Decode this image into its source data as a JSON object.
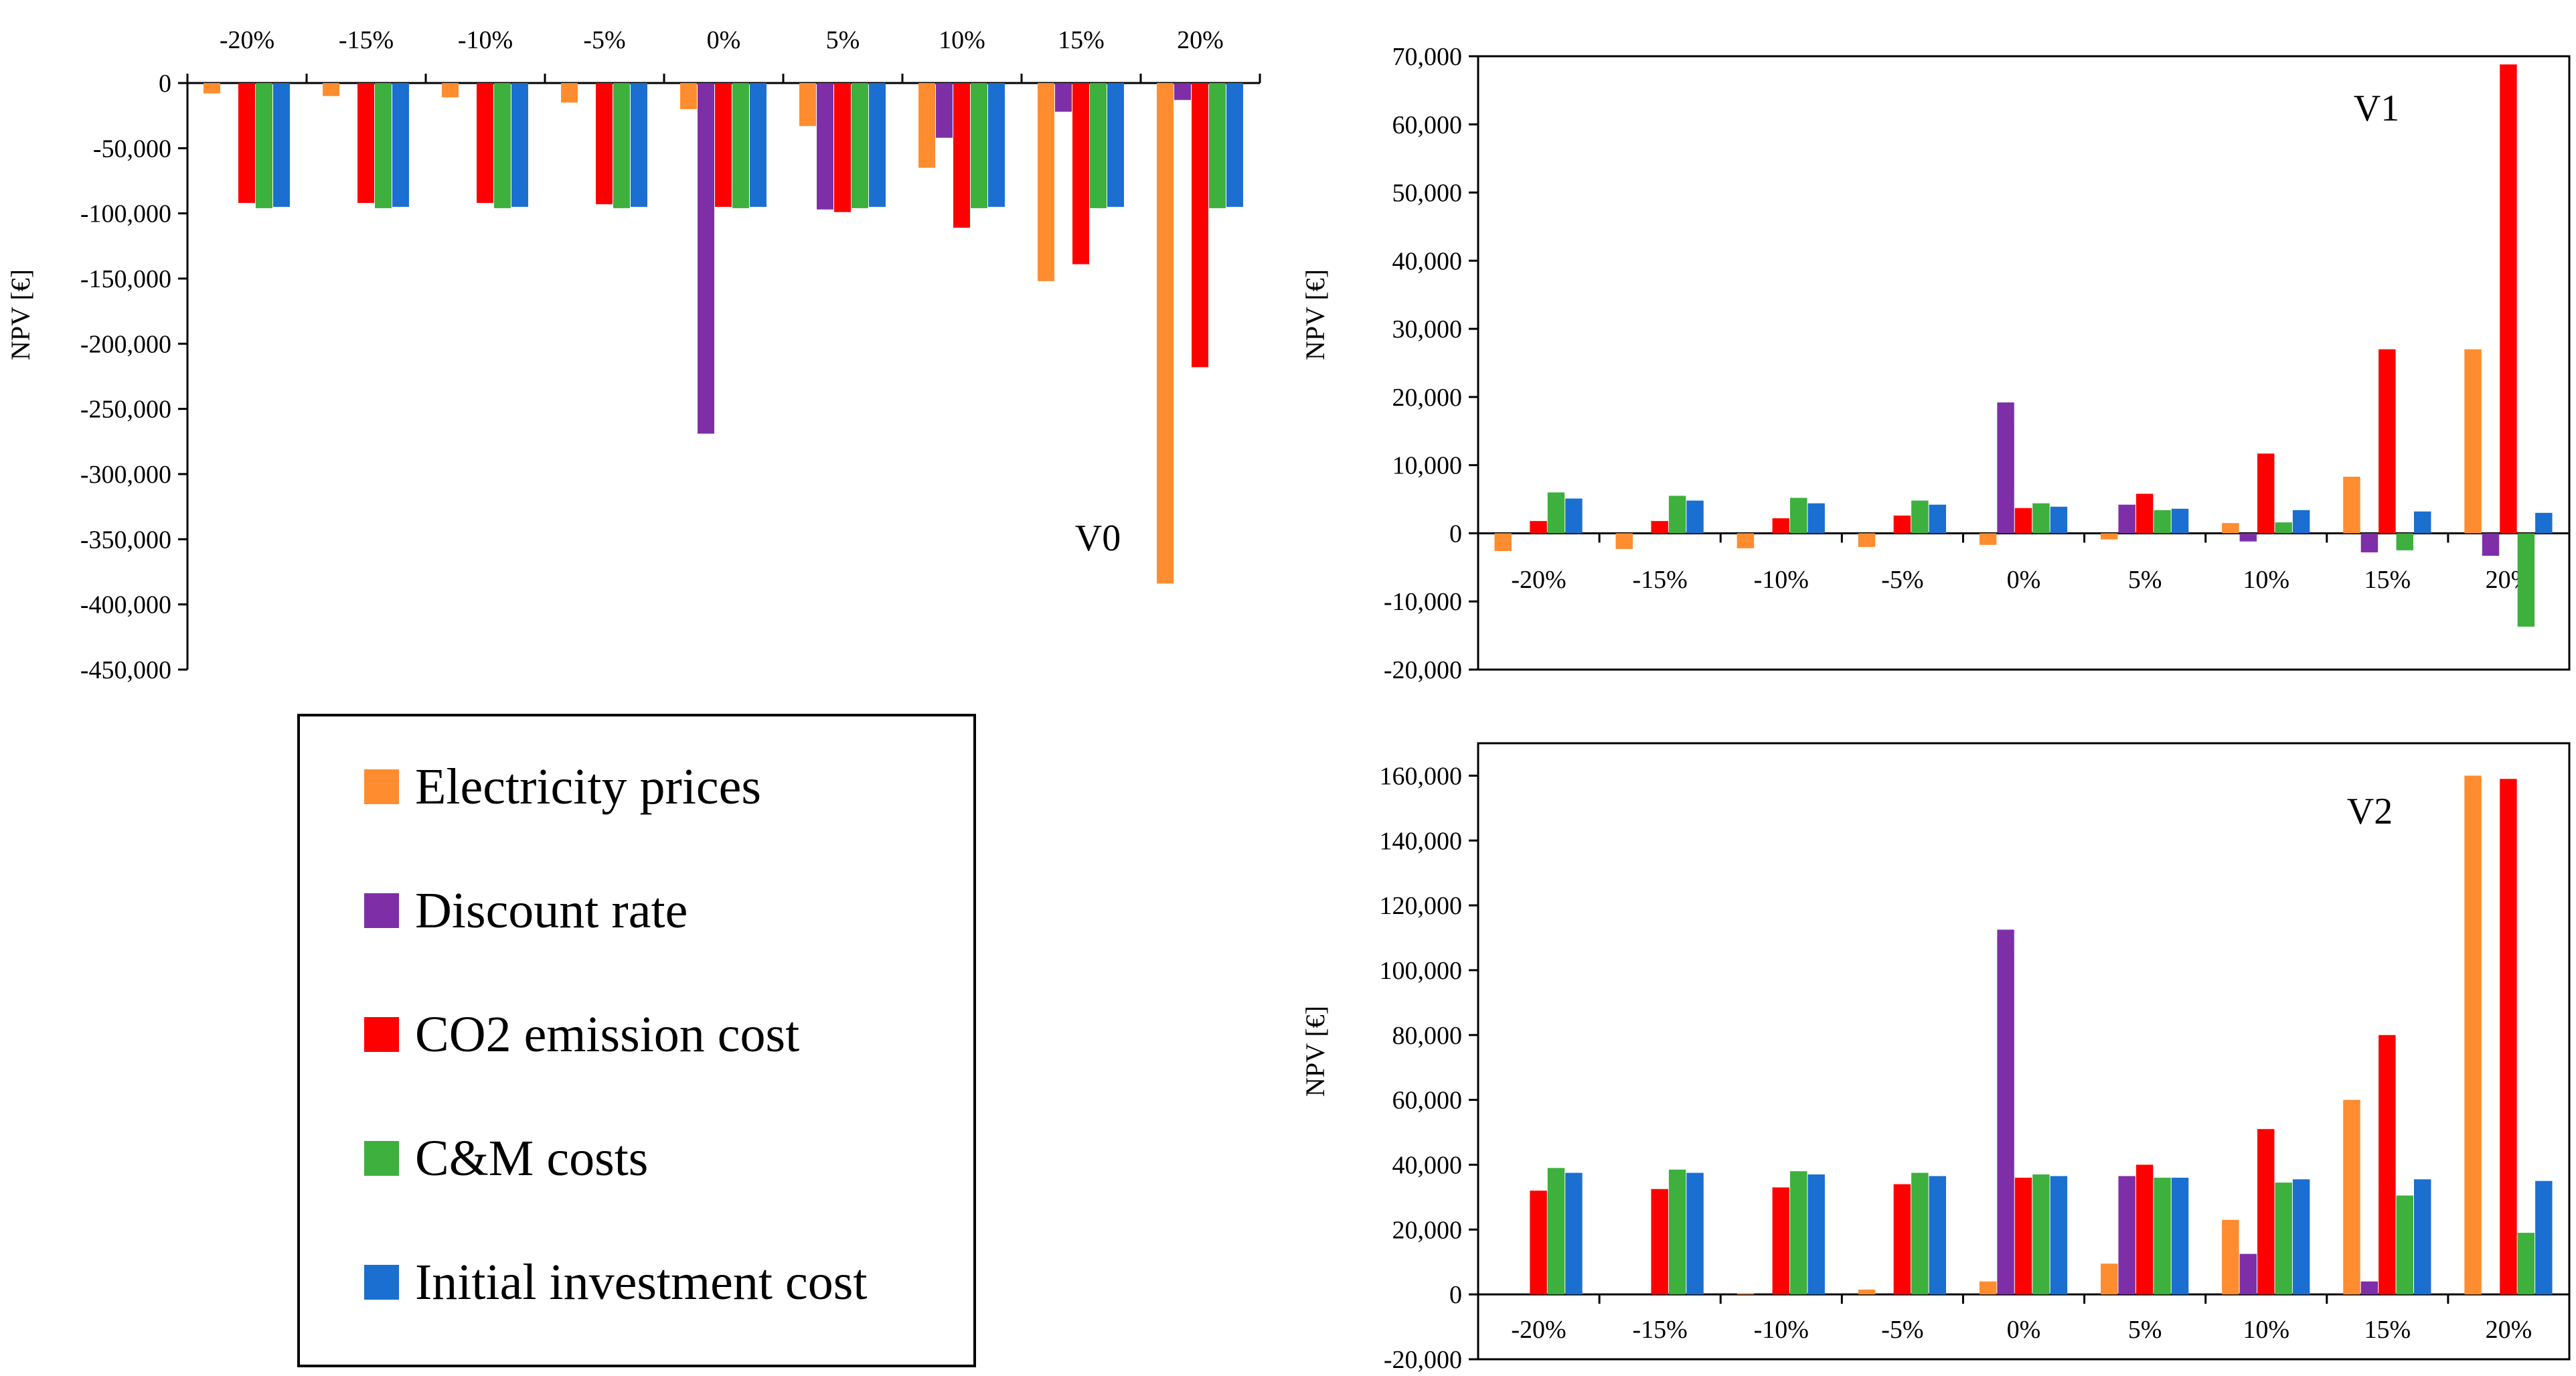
{
  "colors": {
    "Electricity prices": "#FF8C2E",
    "Discount rate": "#7E2FA8",
    "CO2 emission cost": "#FF0000",
    "C&M costs": "#3DB03D",
    "Initial investment cost": "#1A6FD0"
  },
  "legend": {
    "items": [
      "Electricity prices",
      "Discount rate",
      "CO2 emission cost",
      "C&M costs",
      "Initial investment cost"
    ],
    "placement": "bottom-left"
  },
  "chart_data": [
    {
      "type": "bar",
      "id": "v0",
      "label": "V0",
      "ylabel": "NPV [€]",
      "ylim": [
        -450000,
        0
      ],
      "yticks": [
        0,
        -50000,
        -100000,
        -150000,
        -200000,
        -250000,
        -300000,
        -350000,
        -400000,
        -450000
      ],
      "ytick_labels": [
        "0",
        "-50,000",
        "-100,000",
        "-150,000",
        "-200,000",
        "-250,000",
        "-300,000",
        "-350,000",
        "-400,000",
        "-450,000"
      ],
      "categories": [
        "-20%",
        "-15%",
        "-10%",
        "-5%",
        "0%",
        "5%",
        "10%",
        "15%",
        "20%"
      ],
      "series": [
        {
          "name": "Electricity prices",
          "values": [
            -8000,
            -10000,
            -11000,
            -15000,
            -20000,
            -33000,
            -65000,
            -152000,
            -384000
          ]
        },
        {
          "name": "Discount rate",
          "values": [
            0,
            0,
            0,
            0,
            -269000,
            -97000,
            -42000,
            -22000,
            -13000
          ]
        },
        {
          "name": "CO2 emission cost",
          "values": [
            -92000,
            -92000,
            -92000,
            -93000,
            -95000,
            -99000,
            -111000,
            -139000,
            -218000
          ]
        },
        {
          "name": "C&M costs",
          "values": [
            -96000,
            -96000,
            -96000,
            -96000,
            -96000,
            -96000,
            -96000,
            -96000,
            -96000
          ]
        },
        {
          "name": "Initial investment cost",
          "values": [
            -95000,
            -95000,
            -95000,
            -95000,
            -95000,
            -95000,
            -95000,
            -95000,
            -95000
          ]
        }
      ]
    },
    {
      "type": "bar",
      "id": "v1",
      "label": "V1",
      "ylabel": "NPV [€]",
      "ylim": [
        -20000,
        70000
      ],
      "yticks": [
        70000,
        60000,
        50000,
        40000,
        30000,
        20000,
        10000,
        0,
        -10000,
        -20000
      ],
      "ytick_labels": [
        "70,000",
        "60,000",
        "50,000",
        "40,000",
        "30,000",
        "20,000",
        "10,000",
        "0",
        "-10,000",
        "-20,000"
      ],
      "categories": [
        "-20%",
        "-15%",
        "-10%",
        "-5%",
        "0%",
        "5%",
        "10%",
        "15%",
        "20%"
      ],
      "series": [
        {
          "name": "Electricity prices",
          "values": [
            -2600,
            -2300,
            -2200,
            -2000,
            -1700,
            -900,
            1500,
            8300,
            27000
          ]
        },
        {
          "name": "Discount rate",
          "values": [
            0,
            0,
            0,
            0,
            19200,
            4200,
            -1200,
            -2800,
            -3300
          ]
        },
        {
          "name": "CO2 emission cost",
          "values": [
            1800,
            1800,
            2200,
            2600,
            3700,
            5800,
            11700,
            27000,
            68800
          ]
        },
        {
          "name": "C&M costs",
          "values": [
            6000,
            5500,
            5200,
            4800,
            4400,
            3400,
            1600,
            -2500,
            -13700
          ]
        },
        {
          "name": "Initial investment cost",
          "values": [
            5100,
            4800,
            4400,
            4200,
            3900,
            3600,
            3400,
            3200,
            3000
          ]
        }
      ]
    },
    {
      "type": "bar",
      "id": "v2",
      "label": "V2",
      "ylabel": "NPV [€]",
      "ylim": [
        -20000,
        170000
      ],
      "yticks": [
        160000,
        140000,
        120000,
        100000,
        80000,
        60000,
        40000,
        20000,
        0,
        -20000
      ],
      "ytick_labels": [
        "160,000",
        "140,000",
        "120,000",
        "100,000",
        "80,000",
        "60,000",
        "40,000",
        "20,000",
        "0",
        "-20,000"
      ],
      "categories": [
        "-20%",
        "-15%",
        "-10%",
        "-5%",
        "0%",
        "5%",
        "10%",
        "15%",
        "20%"
      ],
      "series": [
        {
          "name": "Electricity prices",
          "values": [
            0,
            0,
            300,
            1500,
            4000,
            9500,
            23000,
            60000,
            160000
          ]
        },
        {
          "name": "Discount rate",
          "values": [
            0,
            0,
            0,
            0,
            112500,
            36500,
            12500,
            4000,
            0
          ]
        },
        {
          "name": "CO2 emission cost",
          "values": [
            32000,
            32500,
            33000,
            34000,
            36000,
            40000,
            51000,
            80000,
            159000
          ]
        },
        {
          "name": "C&M costs",
          "values": [
            39000,
            38500,
            38000,
            37500,
            37000,
            36000,
            34500,
            30500,
            19000
          ]
        },
        {
          "name": "Initial investment cost",
          "values": [
            37500,
            37500,
            37000,
            36500,
            36500,
            36000,
            35500,
            35500,
            35000
          ]
        }
      ]
    }
  ]
}
